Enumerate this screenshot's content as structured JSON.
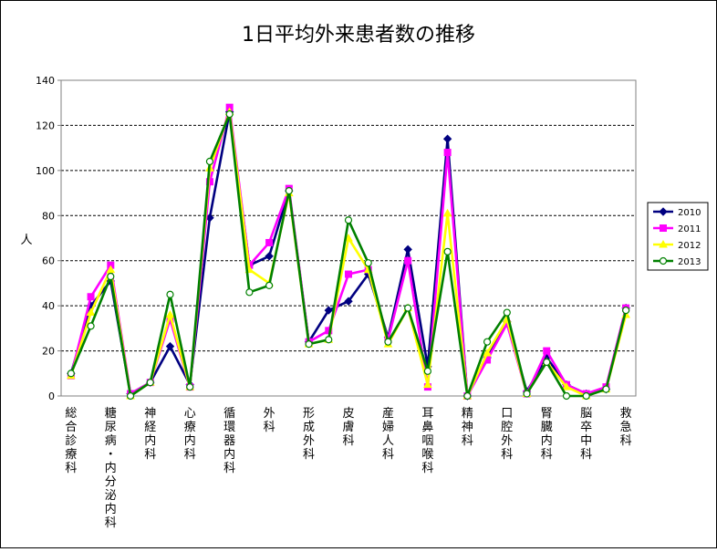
{
  "chart_data": {
    "type": "line",
    "title": "1日平均外来患者数の推移",
    "ylabel": "人",
    "xlabel": "",
    "ylim": [
      0,
      140
    ],
    "yticks": [
      0,
      20,
      40,
      60,
      80,
      100,
      120,
      140
    ],
    "grid": true,
    "legend_position": "right",
    "categories": [
      "総合診療科",
      "糖尿病・内分泌内科",
      "神経内科",
      "心療内科",
      "循環器内科",
      "外科",
      "形成外科",
      "皮膚科",
      "産婦人科",
      "耳鼻咽喉科",
      "精神科",
      "口腔外科",
      "腎臓内科",
      "脳卒中科",
      "救急科"
    ],
    "x": [
      "総合診療科",
      "",
      "糖尿病・内分泌内科",
      "",
      "神経内科",
      "",
      "心療内科",
      "",
      "循環器内科",
      "",
      "外科",
      "",
      "形成外科",
      "",
      "皮膚科",
      "",
      "産婦人科",
      "",
      "耳鼻咽喉科",
      "",
      "精神科",
      "",
      "口腔外科",
      "",
      "腎臓内科",
      "",
      "脳卒中科",
      "",
      "救急科"
    ],
    "series": [
      {
        "name": "2010",
        "color": "#000080",
        "marker": "diamond",
        "values": [
          10,
          40,
          51,
          1,
          6,
          22,
          5,
          79,
          126,
          58,
          62,
          91,
          24,
          38,
          42,
          54,
          26,
          65,
          13,
          114,
          0,
          17,
          33,
          2,
          17,
          5,
          1,
          3,
          39
        ]
      },
      {
        "name": "2011",
        "color": "#FF00FF",
        "marker": "square",
        "values": [
          9,
          44,
          58,
          1,
          6,
          34,
          4,
          95,
          128,
          58,
          68,
          92,
          24,
          29,
          54,
          56,
          25,
          60,
          4,
          108,
          0,
          16,
          32,
          1,
          20,
          5,
          1,
          4,
          39
        ]
      },
      {
        "name": "2012",
        "color": "#FFFF00",
        "marker": "triangle",
        "values": [
          9,
          37,
          56,
          0,
          6,
          36,
          4,
          101,
          126,
          56,
          50,
          90,
          23,
          25,
          70,
          56,
          23,
          39,
          5,
          81,
          0,
          19,
          34,
          1,
          15,
          4,
          0,
          3,
          36
        ]
      },
      {
        "name": "2013",
        "color": "#008000",
        "marker": "circle",
        "values": [
          10,
          31,
          53,
          0,
          6,
          45,
          4,
          104,
          125,
          46,
          49,
          91,
          23,
          25,
          78,
          59,
          24,
          39,
          11,
          64,
          0,
          24,
          37,
          1,
          15,
          0,
          0,
          3,
          38
        ]
      }
    ]
  }
}
